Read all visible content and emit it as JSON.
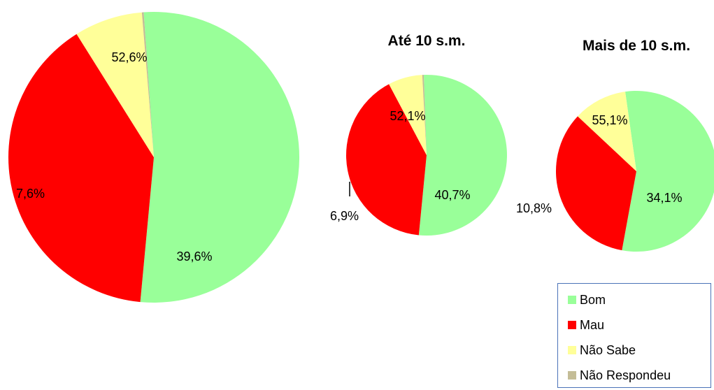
{
  "chart_data": [
    {
      "type": "pie",
      "title": "",
      "categories": [
        "Bom",
        "Mau",
        "Não Sabe",
        "Não Respondeu"
      ],
      "values": [
        52.6,
        39.6,
        7.6,
        0.2
      ],
      "labels": [
        "52,6%",
        "39,6%",
        "7,6%",
        ""
      ]
    },
    {
      "type": "pie",
      "title": "Até 10 s.m.",
      "categories": [
        "Bom",
        "Mau",
        "Não Sabe",
        "Não Respondeu"
      ],
      "values": [
        52.1,
        40.7,
        6.9,
        0.3
      ],
      "labels": [
        "52,1%",
        "40,7%",
        "6,9%",
        ""
      ]
    },
    {
      "type": "pie",
      "title": "Mais de 10 s.m.",
      "categories": [
        "Bom",
        "Mau",
        "Não Sabe",
        "Não Respondeu"
      ],
      "values": [
        55.1,
        34.1,
        10.8,
        0.0
      ],
      "labels": [
        "55,1%",
        "34,1%",
        "10,8%",
        ""
      ]
    }
  ],
  "legend": {
    "placement": "bottom-right",
    "items": [
      {
        "label": "Bom",
        "color": "#99ff99"
      },
      {
        "label": "Mau",
        "color": "#ff0000"
      },
      {
        "label": "Não Sabe",
        "color": "#ffff99"
      },
      {
        "label": "Não Respondeu",
        "color": "#c4bd97"
      }
    ]
  }
}
